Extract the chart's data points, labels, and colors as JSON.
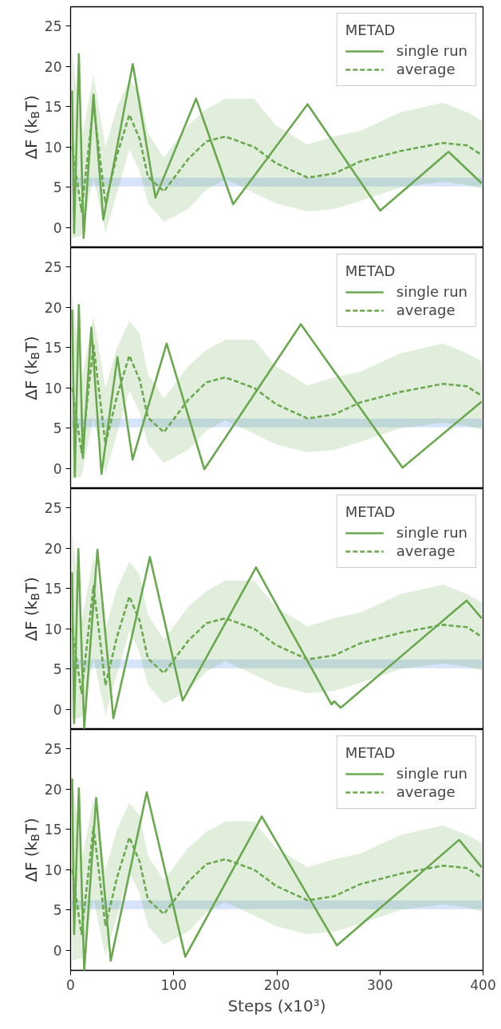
{
  "chart_data": [
    {
      "type": "line",
      "ylabel": "ΔF (k$_{B}$T)",
      "xlim": [
        0,
        400
      ],
      "ylim": [
        -2.5,
        27.4
      ],
      "yticks": [
        0,
        5,
        10,
        15,
        20,
        25
      ],
      "tick_labels": "y",
      "grid": false,
      "legend": "top right",
      "legend_title": "METAD",
      "bands": [
        {
          "axis": "y",
          "from": 5.1,
          "to": 6.2,
          "color": "#a4c2f4"
        }
      ],
      "series": [
        {
          "name": "single run",
          "color": "#6aa84f",
          "line_style": "solid",
          "x": [
            1.5,
            3.4,
            8,
            12.6,
            22.2,
            31.7,
            60.3,
            82.3,
            121.7,
            157.6,
            229.8,
            300.2,
            366.5,
            398.7
          ],
          "values": [
            17,
            -0.7,
            21.5,
            -1.3,
            16.5,
            1,
            20.3,
            3.7,
            16,
            2.9,
            15.3,
            2.1,
            9.4,
            5.5
          ]
        },
        {
          "name": "average",
          "color": "#6aa84f",
          "line_style": "dashed",
          "x": [
            1.5,
            10.6,
            22.2,
            33.8,
            45,
            57,
            67,
            75,
            90.5,
            114,
            131.8,
            150,
            178,
            199,
            229.8,
            255.6,
            281,
            320,
            361,
            384.5,
            398.7
          ],
          "values": [
            10,
            2,
            15.3,
            3,
            9,
            14,
            11,
            6.3,
            4.5,
            8.5,
            10.7,
            11.3,
            10,
            8,
            6.2,
            6.7,
            8.2,
            9.5,
            10.5,
            10.2,
            9
          ],
          "lower": [
            -1.3,
            -1,
            6.3,
            -0.7,
            4.3,
            9.7,
            7,
            3,
            0.7,
            2.3,
            4.7,
            6,
            4.3,
            3,
            2,
            2.3,
            3.3,
            5,
            5.7,
            5.3,
            4.8
          ],
          "upper": [
            22,
            11,
            18.9,
            10,
            15,
            18.3,
            16.7,
            11.7,
            8.7,
            12.7,
            14.7,
            16,
            16,
            12.7,
            10.3,
            11.3,
            12,
            14.3,
            15.5,
            14.3,
            13.3
          ]
        }
      ]
    },
    {
      "type": "line",
      "ylabel": "ΔF (k$_{B}$T)",
      "xlim": [
        0,
        400
      ],
      "ylim": [
        -2.5,
        27.4
      ],
      "yticks": [
        0,
        5,
        10,
        15,
        20,
        25
      ],
      "tick_labels": "y",
      "grid": false,
      "legend": "top right",
      "legend_title": "METAD",
      "bands": [
        {
          "axis": "y",
          "from": 5.1,
          "to": 6.2,
          "color": "#a4c2f4"
        }
      ],
      "series": [
        {
          "name": "single run",
          "color": "#6aa84f",
          "line_style": "solid",
          "x": [
            1.5,
            4.1,
            8,
            11.9,
            20.1,
            29.9,
            45.4,
            60.1,
            93.1,
            129.7,
            223.3,
            321.9,
            398.7
          ],
          "values": [
            19.7,
            -1,
            20.3,
            1.3,
            17.5,
            -0.7,
            13.8,
            1.1,
            15.5,
            -0.1,
            17.9,
            0.1,
            8.3
          ]
        },
        {
          "name": "average",
          "color": "#6aa84f",
          "line_style": "dashed",
          "x": [
            1.5,
            10.6,
            22.2,
            33.8,
            45,
            57,
            67,
            75,
            90.5,
            114,
            131.8,
            150,
            178,
            199,
            229.8,
            255.6,
            281,
            320,
            361,
            384.5,
            398.7
          ],
          "values": [
            10,
            2,
            15.3,
            3,
            9,
            14,
            11,
            6.3,
            4.5,
            8.5,
            10.7,
            11.3,
            10,
            8,
            6.2,
            6.7,
            8.2,
            9.5,
            10.5,
            10.2,
            9
          ],
          "lower": [
            -1.3,
            -1,
            6.3,
            -0.7,
            4.3,
            9.7,
            7,
            3,
            0.7,
            2.3,
            4.7,
            6,
            4.3,
            3,
            2,
            2.3,
            3.3,
            5,
            5.7,
            5.3,
            4.8
          ],
          "upper": [
            22,
            11,
            18.9,
            10,
            15,
            18.3,
            16.7,
            11.7,
            8.7,
            12.7,
            14.7,
            16,
            16,
            12.7,
            10.3,
            11.3,
            12,
            14.3,
            15.5,
            14.3,
            13.3
          ]
        }
      ]
    },
    {
      "type": "line",
      "ylabel": "ΔF (k$_{B}$T)",
      "xlim": [
        0,
        400
      ],
      "ylim": [
        -2.5,
        27.4
      ],
      "yticks": [
        0,
        5,
        10,
        15,
        20,
        25
      ],
      "tick_labels": "y",
      "grid": false,
      "legend": "top right",
      "legend_title": "METAD",
      "bands": [
        {
          "axis": "y",
          "from": 5.1,
          "to": 6.2,
          "color": "#a4c2f4"
        }
      ],
      "series": [
        {
          "name": "single run",
          "color": "#6aa84f",
          "line_style": "solid",
          "x": [
            1.5,
            3.4,
            7.5,
            13.2,
            26,
            41.5,
            76.9,
            108.6,
            179.8,
            253,
            255.6,
            262,
            384,
            398.7
          ],
          "values": [
            17,
            -1.7,
            19.9,
            -2.3,
            19.8,
            -1.1,
            18.9,
            1.1,
            17.6,
            0.6,
            1,
            0.2,
            13.5,
            11.3
          ]
        },
        {
          "name": "average",
          "color": "#6aa84f",
          "line_style": "dashed",
          "x": [
            1.5,
            10.6,
            22.2,
            33.8,
            45,
            57,
            67,
            75,
            90.5,
            114,
            131.8,
            150,
            178,
            199,
            229.8,
            255.6,
            281,
            320,
            361,
            384.5,
            398.7
          ],
          "values": [
            10,
            2,
            15.3,
            3,
            9,
            14,
            11,
            6.3,
            4.5,
            8.5,
            10.7,
            11.3,
            10,
            8,
            6.2,
            6.7,
            8.2,
            9.5,
            10.5,
            10.2,
            9
          ],
          "lower": [
            -1.3,
            -1,
            6.3,
            -0.7,
            4.3,
            9.7,
            7,
            3,
            0.7,
            2.3,
            4.7,
            6,
            4.3,
            3,
            2,
            2.3,
            3.3,
            5,
            5.7,
            5.3,
            4.8
          ],
          "upper": [
            22,
            11,
            18.9,
            10,
            15,
            18.3,
            16.7,
            11.7,
            8.7,
            12.7,
            14.7,
            16,
            16,
            12.7,
            10.3,
            11.3,
            12,
            14.3,
            15.5,
            14.3,
            13.3
          ]
        }
      ]
    },
    {
      "type": "line",
      "xlabel": "Steps (x10³)",
      "ylabel": "ΔF (k$_{B}$T)",
      "xlim": [
        0,
        400
      ],
      "ylim": [
        -2.5,
        27.4
      ],
      "xticks": [
        0,
        100,
        200,
        300,
        400
      ],
      "yticks": [
        0,
        5,
        10,
        15,
        20,
        25
      ],
      "grid": false,
      "legend": "top right",
      "legend_title": "METAD",
      "bands": [
        {
          "axis": "y",
          "from": 5.1,
          "to": 6.2,
          "color": "#a4c2f4"
        }
      ],
      "series": [
        {
          "name": "single run",
          "color": "#6aa84f",
          "line_style": "solid",
          "x": [
            1.5,
            3.4,
            8,
            13.2,
            24.8,
            38.9,
            73.8,
            111.2,
            185.4,
            258.2,
            376.8,
            398.7
          ],
          "values": [
            21.3,
            2,
            20.1,
            -2.5,
            18.9,
            -1.3,
            19.6,
            -0.8,
            16.6,
            0.6,
            13.7,
            10.3
          ]
        },
        {
          "name": "average",
          "color": "#6aa84f",
          "line_style": "dashed",
          "x": [
            1.5,
            10.6,
            22.2,
            33.8,
            45,
            57,
            67,
            75,
            90.5,
            114,
            131.8,
            150,
            178,
            199,
            229.8,
            255.6,
            281,
            320,
            361,
            384.5,
            398.7
          ],
          "values": [
            10,
            2,
            15.3,
            3,
            9,
            14,
            11,
            6.3,
            4.5,
            8.5,
            10.7,
            11.3,
            10,
            8,
            6.2,
            6.7,
            8.2,
            9.5,
            10.5,
            10.2,
            9
          ],
          "lower": [
            -1.3,
            -1,
            6.3,
            -0.7,
            4.3,
            9.7,
            7,
            3,
            0.7,
            2.3,
            4.7,
            6,
            4.3,
            3,
            2,
            2.3,
            3.3,
            5,
            5.7,
            5.3,
            4.8
          ],
          "upper": [
            22,
            11,
            18.9,
            10,
            15,
            18.3,
            16.7,
            11.7,
            8.7,
            12.7,
            14.7,
            16,
            16,
            12.7,
            10.3,
            11.3,
            12,
            14.3,
            15.5,
            14.3,
            13.3
          ]
        }
      ]
    }
  ]
}
